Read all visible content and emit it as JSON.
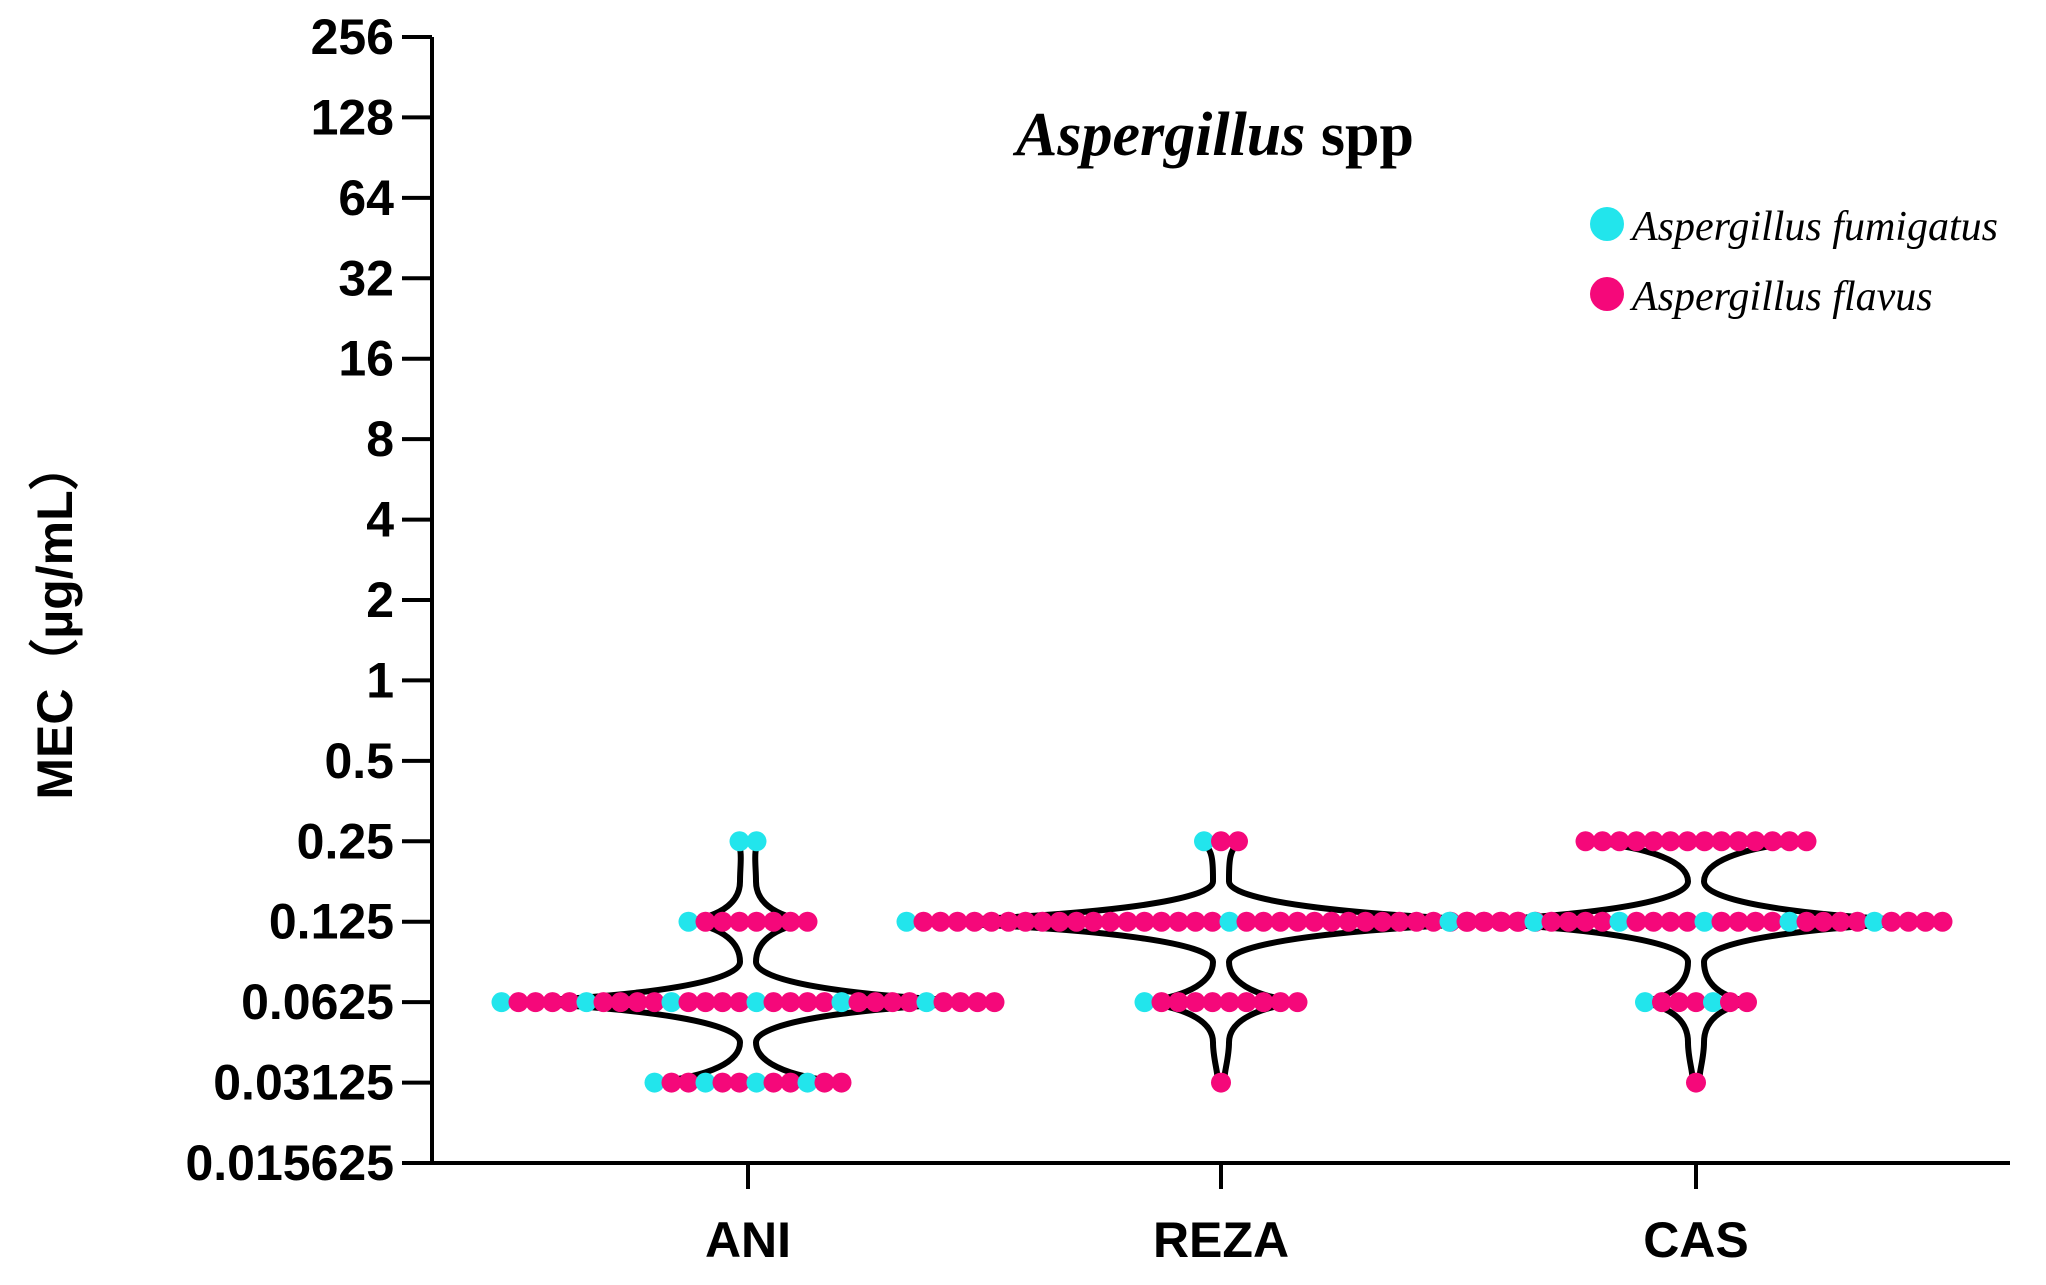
{
  "chart_data": {
    "type": "violin",
    "title_italic": "Aspergillus",
    "title_rest": "spp",
    "ylabel": "MEC（µg/mL）",
    "xlabel": "",
    "y_scale": "log2",
    "y_ticks": [
      {
        "value": 0.015625,
        "label": "0.015625"
      },
      {
        "value": 0.03125,
        "label": "0.03125"
      },
      {
        "value": 0.0625,
        "label": "0.0625"
      },
      {
        "value": 0.125,
        "label": "0.125"
      },
      {
        "value": 0.25,
        "label": "0.25"
      },
      {
        "value": 0.5,
        "label": "0.5"
      },
      {
        "value": 1,
        "label": "1"
      },
      {
        "value": 2,
        "label": "2"
      },
      {
        "value": 4,
        "label": "4"
      },
      {
        "value": 8,
        "label": "8"
      },
      {
        "value": 16,
        "label": "16"
      },
      {
        "value": 32,
        "label": "32"
      },
      {
        "value": 64,
        "label": "64"
      },
      {
        "value": 128,
        "label": "128"
      },
      {
        "value": 256,
        "label": "256"
      }
    ],
    "categories": [
      "ANI",
      "REZA",
      "CAS"
    ],
    "series": [
      {
        "name": "Aspergillus fumigatus",
        "color": "#22e5ec"
      },
      {
        "name": "Aspergillus flavus",
        "color": "#f5087a"
      }
    ],
    "groups": [
      {
        "category": "ANI",
        "values": [
          {
            "mec": 0.25,
            "fumigatus": 2,
            "flavus": 0
          },
          {
            "mec": 0.125,
            "fumigatus": 1,
            "flavus": 7
          },
          {
            "mec": 0.0625,
            "fumigatus": 6,
            "flavus": 24
          },
          {
            "mec": 0.03125,
            "fumigatus": 4,
            "flavus": 8
          }
        ]
      },
      {
        "category": "REZA",
        "values": [
          {
            "mec": 0.25,
            "fumigatus": 1,
            "flavus": 2
          },
          {
            "mec": 0.125,
            "fumigatus": 2,
            "flavus": 36
          },
          {
            "mec": 0.0625,
            "fumigatus": 1,
            "flavus": 9
          },
          {
            "mec": 0.03125,
            "fumigatus": 0,
            "flavus": 1
          }
        ]
      },
      {
        "category": "CAS",
        "values": [
          {
            "mec": 0.25,
            "fumigatus": 0,
            "flavus": 14
          },
          {
            "mec": 0.125,
            "fumigatus": 6,
            "flavus": 24
          },
          {
            "mec": 0.0625,
            "fumigatus": 2,
            "flavus": 5
          },
          {
            "mec": 0.03125,
            "fumigatus": 0,
            "flavus": 1
          }
        ]
      }
    ],
    "legend_position": "top-right"
  }
}
